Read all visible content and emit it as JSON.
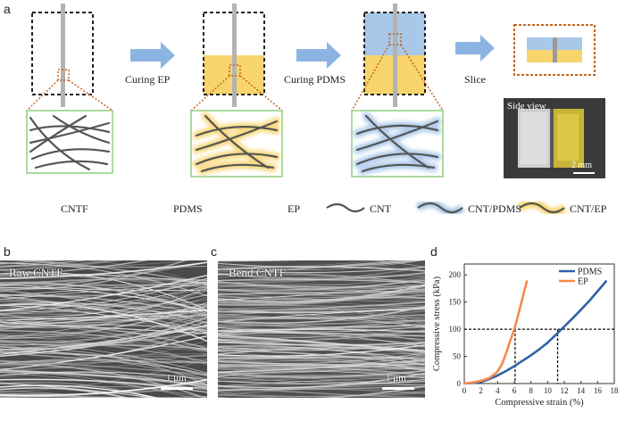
{
  "panels": {
    "a": "a",
    "b": "b",
    "c": "c",
    "d": "d"
  },
  "steps": {
    "curing_ep": "Curing EP",
    "curing_pdms": "Curing PDMS",
    "slice": "Slice"
  },
  "photo": {
    "side_view": "Side view",
    "scale": "2 mm"
  },
  "legend": {
    "cntf": "CNTF",
    "pdms": "PDMS",
    "ep": "EP",
    "cnt": "CNT",
    "cnt_pdms": "CNT/PDMS",
    "cnt_ep": "CNT/EP"
  },
  "sem_b": {
    "title": "Raw CNTF",
    "scale": "1 μm"
  },
  "sem_c": {
    "title": "Bend CNTF",
    "scale": "1 μm"
  },
  "colors": {
    "pdms": "#a9c7e8",
    "ep": "#f7d46c",
    "cntf": "#c8c8c8",
    "cnt": "#555555",
    "arrow": "#8cb4e3",
    "pdms_line": "#2f62a8",
    "ep_line": "#f58a4a"
  },
  "chart_data": {
    "type": "line",
    "xlabel": "Compressive strain (%)",
    "ylabel": "Compressive stress (kPa)",
    "xlim": [
      0,
      18
    ],
    "ylim": [
      0,
      220
    ],
    "xticks": [
      0,
      2,
      4,
      6,
      8,
      10,
      12,
      14,
      16,
      18
    ],
    "yticks": [
      0,
      50,
      100,
      150,
      200
    ],
    "legend_position": "top-right",
    "series": [
      {
        "name": "PDMS",
        "color": "#2f62a8",
        "x": [
          0,
          1,
          2,
          3,
          4,
          5,
          6,
          7,
          8,
          9,
          10,
          11,
          12,
          13,
          14,
          15,
          16,
          17
        ],
        "y": [
          0,
          1,
          3,
          8,
          15,
          23,
          32,
          42,
          52,
          63,
          75,
          90,
          105,
          120,
          136,
          152,
          170,
          188
        ]
      },
      {
        "name": "EP",
        "color": "#f58a4a",
        "x": [
          0,
          1,
          2,
          3,
          4,
          4.5,
          5,
          5.5,
          6,
          6.5,
          7,
          7.5
        ],
        "y": [
          0,
          2,
          5,
          10,
          22,
          35,
          55,
          78,
          100,
          128,
          158,
          188
        ]
      }
    ],
    "reference_lines": {
      "y": 100,
      "x": [
        6.1,
        11.2
      ]
    }
  }
}
